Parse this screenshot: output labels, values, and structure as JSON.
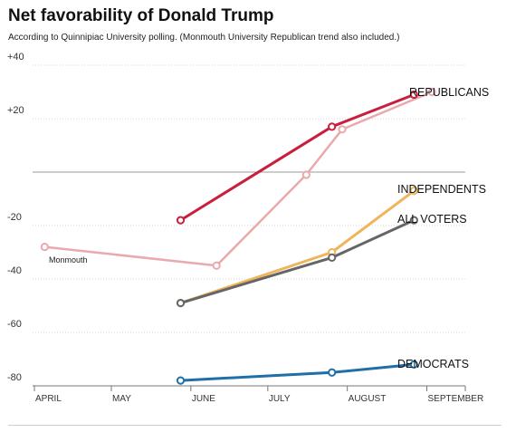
{
  "chart_data": {
    "type": "line",
    "title": "Net favorability of Donald Trump",
    "subtitle": "According to Quinnipiac University polling. (Monmouth University Republican trend also included.)",
    "xlabel": "",
    "ylabel": "",
    "x_ticks": [
      "APRIL",
      "MAY",
      "JUNE",
      "JULY",
      "AUGUST",
      "SEPTEMBER"
    ],
    "x_tick_dates": [
      "2015-04-01",
      "2015-05-01",
      "2015-06-01",
      "2015-07-01",
      "2015-08-01",
      "2015-09-01"
    ],
    "y_ticks": [
      40,
      20,
      0,
      -20,
      -40,
      -60,
      -80
    ],
    "y_tick_labels": [
      "+40",
      "+20",
      "",
      "-20",
      "-40",
      "-60",
      "-80"
    ],
    "ylim": [
      -80,
      40
    ],
    "grid": true,
    "series": [
      {
        "name": "REPUBLICANS",
        "color": "#c8203c",
        "points": [
          {
            "x": "2015-05-28",
            "y": -18
          },
          {
            "x": "2015-07-26",
            "y": 17
          },
          {
            "x": "2015-08-27",
            "y": 29
          }
        ]
      },
      {
        "name": "Monmouth",
        "color": "#eaa9ad",
        "points": [
          {
            "x": "2015-04-05",
            "y": -28
          },
          {
            "x": "2015-06-11",
            "y": -35
          },
          {
            "x": "2015-07-16",
            "y": -1
          },
          {
            "x": "2015-07-30",
            "y": 16
          },
          {
            "x": "2015-09-03",
            "y": 30
          }
        ]
      },
      {
        "name": "INDEPENDENTS",
        "color": "#f0b45a",
        "points": [
          {
            "x": "2015-05-28",
            "y": -49
          },
          {
            "x": "2015-07-26",
            "y": -30
          },
          {
            "x": "2015-08-27",
            "y": -7
          }
        ]
      },
      {
        "name": "ALL VOTERS",
        "color": "#666666",
        "points": [
          {
            "x": "2015-05-28",
            "y": -49
          },
          {
            "x": "2015-07-26",
            "y": -32
          },
          {
            "x": "2015-08-27",
            "y": -18
          }
        ]
      },
      {
        "name": "DEMOCRATS",
        "color": "#1f6fa8",
        "points": [
          {
            "x": "2015-05-28",
            "y": -78
          },
          {
            "x": "2015-07-26",
            "y": -75
          },
          {
            "x": "2015-08-27",
            "y": -72
          }
        ]
      }
    ]
  }
}
